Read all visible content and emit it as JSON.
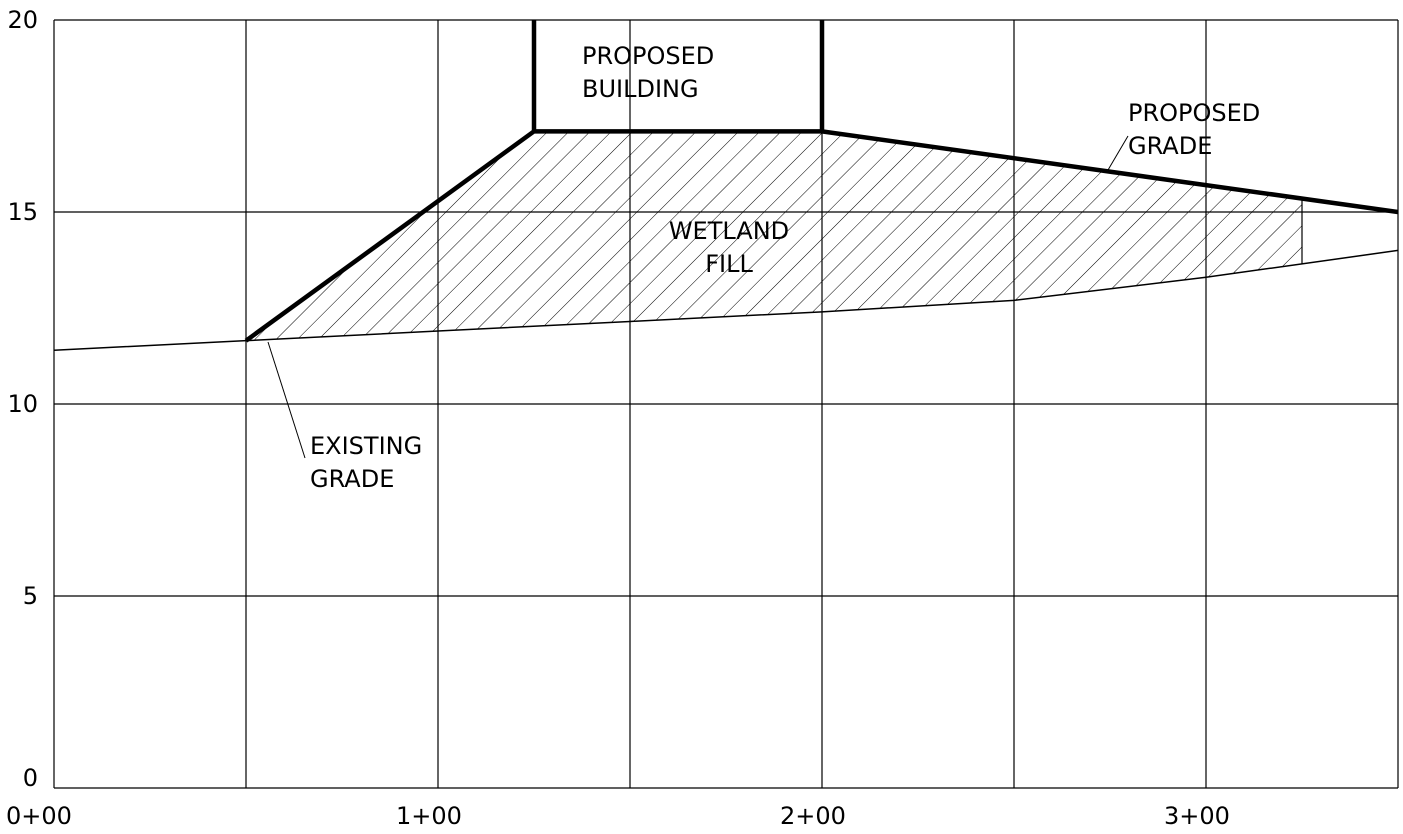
{
  "chart_data": {
    "type": "line",
    "title": "",
    "xlabel": "",
    "ylabel": "",
    "xlim": [
      0,
      350
    ],
    "ylim": [
      0,
      20
    ],
    "grid": true,
    "x_ticks": [
      {
        "value": 0,
        "label": "0+00"
      },
      {
        "value": 100,
        "label": "1+00"
      },
      {
        "value": 200,
        "label": "2+00"
      },
      {
        "value": 300,
        "label": "3+00"
      }
    ],
    "y_ticks": [
      {
        "value": 0,
        "label": "0"
      },
      {
        "value": 5,
        "label": "5"
      },
      {
        "value": 10,
        "label": "10"
      },
      {
        "value": 15,
        "label": "15"
      },
      {
        "value": 20,
        "label": "20"
      }
    ],
    "x_gridlines": [
      0,
      50,
      100,
      150,
      200,
      250,
      300,
      350
    ],
    "y_gridlines": [
      0,
      5,
      10,
      15,
      20
    ],
    "series": [
      {
        "key": "existing",
        "label": [
          "EXISTING",
          "GRADE"
        ],
        "points": [
          [
            0,
            11.4
          ],
          [
            50,
            11.65
          ],
          [
            100,
            11.9
          ],
          [
            150,
            12.15
          ],
          [
            200,
            12.4
          ],
          [
            250,
            12.7
          ],
          [
            300,
            13.3
          ],
          [
            350,
            14.0
          ]
        ]
      },
      {
        "key": "proposed",
        "label": [
          "PROPOSED",
          "GRADE"
        ],
        "points": [
          [
            50,
            11.65
          ],
          [
            125,
            17.1
          ],
          [
            200,
            17.1
          ],
          [
            350,
            15.0
          ]
        ]
      }
    ],
    "building": {
      "label": [
        "PROPOSED",
        "BUILDING"
      ],
      "x_left": 125,
      "x_right": 200,
      "base": 17.1,
      "top": 20
    },
    "fill_region": {
      "label": [
        "WETLAND",
        "FILL"
      ],
      "x_end": 325
    }
  }
}
